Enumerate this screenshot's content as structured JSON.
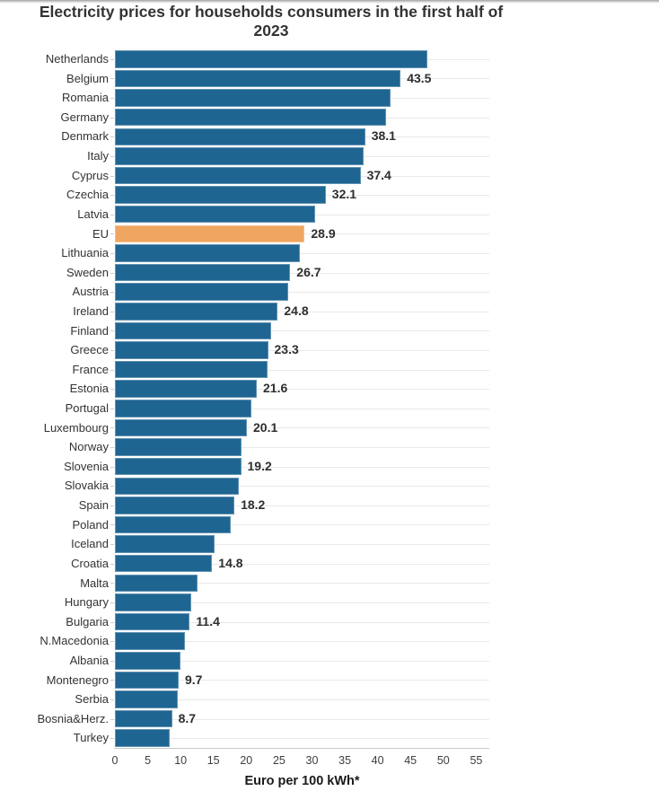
{
  "chart_data": {
    "type": "bar",
    "orientation": "horizontal",
    "title": "Electricity prices for households consumers in the first half of 2023",
    "xlabel": "Euro per 100 kWh*",
    "xlim": [
      0,
      57
    ],
    "x_ticks": [
      0,
      5,
      10,
      15,
      20,
      25,
      30,
      35,
      40,
      45,
      50,
      55
    ],
    "grid": true,
    "legend": "none",
    "colors": {
      "bar": "#1f6592",
      "highlight": "#efa661",
      "gridline": "#e9e9e9",
      "axis_line": "#c9c9c9",
      "text": "#333333"
    },
    "items": [
      {
        "name": "Netherlands",
        "value": 47.5,
        "label": null
      },
      {
        "name": "Belgium",
        "value": 43.5,
        "label": "43.5"
      },
      {
        "name": "Romania",
        "value": 42.0,
        "label": null
      },
      {
        "name": "Germany",
        "value": 41.3,
        "label": null
      },
      {
        "name": "Denmark",
        "value": 38.1,
        "label": "38.1"
      },
      {
        "name": "Italy",
        "value": 37.8,
        "label": null
      },
      {
        "name": "Cyprus",
        "value": 37.4,
        "label": "37.4"
      },
      {
        "name": "Czechia",
        "value": 32.1,
        "label": "32.1"
      },
      {
        "name": "Latvia",
        "value": 30.5,
        "label": null
      },
      {
        "name": "EU",
        "value": 28.9,
        "label": "28.9",
        "highlight": true
      },
      {
        "name": "Lithuania",
        "value": 28.2,
        "label": null
      },
      {
        "name": "Sweden",
        "value": 26.7,
        "label": "26.7"
      },
      {
        "name": "Austria",
        "value": 26.4,
        "label": null
      },
      {
        "name": "Ireland",
        "value": 24.8,
        "label": "24.8"
      },
      {
        "name": "Finland",
        "value": 23.8,
        "label": null
      },
      {
        "name": "Greece",
        "value": 23.3,
        "label": "23.3"
      },
      {
        "name": "France",
        "value": 23.2,
        "label": null
      },
      {
        "name": "Estonia",
        "value": 21.6,
        "label": "21.6"
      },
      {
        "name": "Portugal",
        "value": 20.8,
        "label": null
      },
      {
        "name": "Luxembourg",
        "value": 20.1,
        "label": "20.1"
      },
      {
        "name": "Norway",
        "value": 19.3,
        "label": null
      },
      {
        "name": "Slovenia",
        "value": 19.2,
        "label": "19.2"
      },
      {
        "name": "Slovakia",
        "value": 18.9,
        "label": null
      },
      {
        "name": "Spain",
        "value": 18.2,
        "label": "18.2"
      },
      {
        "name": "Poland",
        "value": 17.6,
        "label": null
      },
      {
        "name": "Iceland",
        "value": 15.2,
        "label": null
      },
      {
        "name": "Croatia",
        "value": 14.8,
        "label": "14.8"
      },
      {
        "name": "Malta",
        "value": 12.6,
        "label": null
      },
      {
        "name": "Hungary",
        "value": 11.6,
        "label": null
      },
      {
        "name": "Bulgaria",
        "value": 11.4,
        "label": "11.4"
      },
      {
        "name": "N.Macedonia",
        "value": 10.6,
        "label": null
      },
      {
        "name": "Albania",
        "value": 10.0,
        "label": null
      },
      {
        "name": "Montenegro",
        "value": 9.7,
        "label": "9.7"
      },
      {
        "name": "Serbia",
        "value": 9.5,
        "label": null
      },
      {
        "name": "Bosnia&Herz.",
        "value": 8.7,
        "label": "8.7"
      },
      {
        "name": "Turkey",
        "value": 8.3,
        "label": null
      }
    ]
  }
}
